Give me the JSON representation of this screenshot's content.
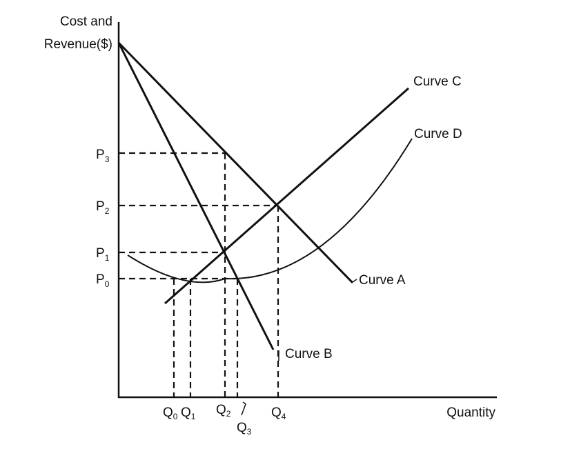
{
  "y_axis_label": [
    "Cost and",
    "Revenue($)"
  ],
  "x_axis_label": "Quantity",
  "price_labels": [
    {
      "main": "P",
      "sub": "3"
    },
    {
      "main": "P",
      "sub": "2"
    },
    {
      "main": "P",
      "sub": "1"
    },
    {
      "main": "P",
      "sub": "0"
    }
  ],
  "quantity_labels": [
    {
      "main": "Q",
      "sub": "0"
    },
    {
      "main": "Q",
      "sub": "1"
    },
    {
      "main": "Q",
      "sub": "2"
    },
    {
      "main": "Q",
      "sub": "3"
    },
    {
      "main": "Q",
      "sub": "4"
    }
  ],
  "curve_labels": {
    "a": "Curve A",
    "b": "Curve B",
    "c": "Curve C",
    "d": "Curve D"
  }
}
